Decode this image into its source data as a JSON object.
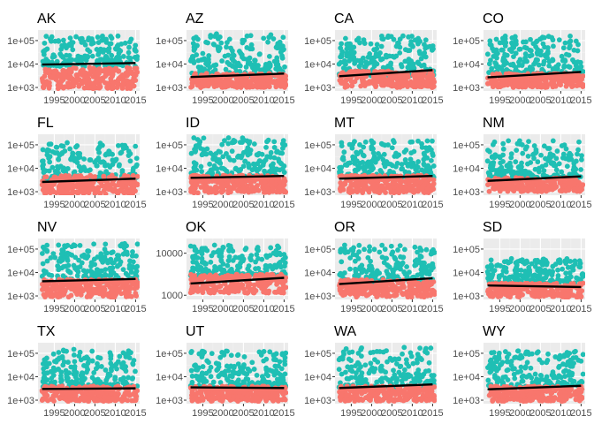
{
  "figure": {
    "colors": {
      "series_low": "#F8766D",
      "series_high": "#1FBFB4",
      "trend": "#000000"
    }
  },
  "chart_data": [
    {
      "type": "scatter",
      "title": "AK",
      "xlim": [
        1991,
        2016
      ],
      "ylim_log10": [
        2.85,
        5.45
      ],
      "y_ticks": [
        {
          "value": 1000,
          "label": "1e+03"
        },
        {
          "value": 10000,
          "label": "1e+04"
        },
        {
          "value": 100000,
          "label": "1e+05"
        }
      ],
      "x_ticks": [
        {
          "value": 1995,
          "label": "1995"
        },
        {
          "value": 2000,
          "label": "2000"
        },
        {
          "value": 2005,
          "label": "2005"
        },
        {
          "value": 2010,
          "label": "2010"
        },
        {
          "value": 2015,
          "label": "2015"
        }
      ],
      "low_range_log10": [
        2.95,
        3.85
      ],
      "high_range_log10": [
        3.9,
        5.2
      ],
      "trend": [
        {
          "x": 1992,
          "y": 9500
        },
        {
          "x": 2015,
          "y": 11000
        }
      ]
    },
    {
      "type": "scatter",
      "title": "AZ",
      "xlim": [
        1991,
        2016
      ],
      "ylim_log10": [
        2.85,
        5.45
      ],
      "y_ticks": [
        {
          "value": 1000,
          "label": "1e+03"
        },
        {
          "value": 10000,
          "label": "1e+04"
        },
        {
          "value": 100000,
          "label": "1e+05"
        }
      ],
      "x_ticks": [
        {
          "value": 1995,
          "label": "1995"
        },
        {
          "value": 2000,
          "label": "2000"
        },
        {
          "value": 2005,
          "label": "2005"
        },
        {
          "value": 2010,
          "label": "2010"
        },
        {
          "value": 2015,
          "label": "2015"
        }
      ],
      "low_range_log10": [
        3.0,
        3.6
      ],
      "high_range_log10": [
        3.5,
        5.3
      ],
      "trend": [
        {
          "x": 1992,
          "y": 2800
        },
        {
          "x": 2015,
          "y": 3900
        }
      ]
    },
    {
      "type": "scatter",
      "title": "CA",
      "xlim": [
        1991,
        2016
      ],
      "ylim_log10": [
        2.85,
        5.45
      ],
      "y_ticks": [
        {
          "value": 1000,
          "label": "1e+03"
        },
        {
          "value": 10000,
          "label": "1e+04"
        },
        {
          "value": 100000,
          "label": "1e+05"
        }
      ],
      "x_ticks": [
        {
          "value": 1995,
          "label": "1995"
        },
        {
          "value": 2000,
          "label": "2000"
        },
        {
          "value": 2005,
          "label": "2005"
        },
        {
          "value": 2010,
          "label": "2010"
        },
        {
          "value": 2015,
          "label": "2015"
        }
      ],
      "low_range_log10": [
        3.0,
        3.7
      ],
      "high_range_log10": [
        3.5,
        5.2
      ],
      "trend": [
        {
          "x": 1992,
          "y": 3000
        },
        {
          "x": 2015,
          "y": 5500
        }
      ]
    },
    {
      "type": "scatter",
      "title": "CO",
      "xlim": [
        1991,
        2016
      ],
      "ylim_log10": [
        2.85,
        5.45
      ],
      "y_ticks": [
        {
          "value": 1000,
          "label": "1e+03"
        },
        {
          "value": 10000,
          "label": "1e+04"
        },
        {
          "value": 100000,
          "label": "1e+05"
        }
      ],
      "x_ticks": [
        {
          "value": 1995,
          "label": "1995"
        },
        {
          "value": 2000,
          "label": "2000"
        },
        {
          "value": 2005,
          "label": "2005"
        },
        {
          "value": 2010,
          "label": "2010"
        },
        {
          "value": 2015,
          "label": "2015"
        }
      ],
      "low_range_log10": [
        3.0,
        3.6
      ],
      "high_range_log10": [
        3.6,
        5.2
      ],
      "trend": [
        {
          "x": 1992,
          "y": 2700
        },
        {
          "x": 2015,
          "y": 4600
        }
      ]
    },
    {
      "type": "scatter",
      "title": "FL",
      "xlim": [
        1991,
        2016
      ],
      "ylim_log10": [
        2.85,
        5.45
      ],
      "y_ticks": [
        {
          "value": 1000,
          "label": "1e+03"
        },
        {
          "value": 10000,
          "label": "1e+04"
        },
        {
          "value": 100000,
          "label": "1e+05"
        }
      ],
      "x_ticks": [
        {
          "value": 1995,
          "label": "1995"
        },
        {
          "value": 2000,
          "label": "2000"
        },
        {
          "value": 2005,
          "label": "2005"
        },
        {
          "value": 2010,
          "label": "2010"
        },
        {
          "value": 2015,
          "label": "2015"
        }
      ],
      "low_range_log10": [
        2.9,
        3.7
      ],
      "high_range_log10": [
        3.5,
        5.1
      ],
      "trend": [
        {
          "x": 1992,
          "y": 2600
        },
        {
          "x": 2015,
          "y": 3600
        }
      ]
    },
    {
      "type": "scatter",
      "title": "ID",
      "xlim": [
        1991,
        2016
      ],
      "ylim_log10": [
        2.85,
        5.45
      ],
      "y_ticks": [
        {
          "value": 1000,
          "label": "1e+03"
        },
        {
          "value": 10000,
          "label": "1e+04"
        },
        {
          "value": 100000,
          "label": "1e+05"
        }
      ],
      "x_ticks": [
        {
          "value": 1995,
          "label": "1995"
        },
        {
          "value": 2000,
          "label": "2000"
        },
        {
          "value": 2005,
          "label": "2005"
        },
        {
          "value": 2010,
          "label": "2010"
        },
        {
          "value": 2015,
          "label": "2015"
        }
      ],
      "low_range_log10": [
        2.95,
        3.7
      ],
      "high_range_log10": [
        3.6,
        5.3
      ],
      "trend": [
        {
          "x": 1992,
          "y": 3900
        },
        {
          "x": 2015,
          "y": 4700
        }
      ]
    },
    {
      "type": "scatter",
      "title": "MT",
      "xlim": [
        1991,
        2016
      ],
      "ylim_log10": [
        2.85,
        5.45
      ],
      "y_ticks": [
        {
          "value": 1000,
          "label": "1e+03"
        },
        {
          "value": 10000,
          "label": "1e+04"
        },
        {
          "value": 100000,
          "label": "1e+05"
        }
      ],
      "x_ticks": [
        {
          "value": 1995,
          "label": "1995"
        },
        {
          "value": 2000,
          "label": "2000"
        },
        {
          "value": 2005,
          "label": "2005"
        },
        {
          "value": 2010,
          "label": "2010"
        },
        {
          "value": 2015,
          "label": "2015"
        }
      ],
      "low_range_log10": [
        2.95,
        3.7
      ],
      "high_range_log10": [
        3.6,
        5.2
      ],
      "trend": [
        {
          "x": 1992,
          "y": 3600
        },
        {
          "x": 2015,
          "y": 4700
        }
      ]
    },
    {
      "type": "scatter",
      "title": "NM",
      "xlim": [
        1991,
        2016
      ],
      "ylim_log10": [
        2.85,
        5.45
      ],
      "y_ticks": [
        {
          "value": 1000,
          "label": "1e+03"
        },
        {
          "value": 10000,
          "label": "1e+04"
        },
        {
          "value": 100000,
          "label": "1e+05"
        }
      ],
      "x_ticks": [
        {
          "value": 1995,
          "label": "1995"
        },
        {
          "value": 2000,
          "label": "2000"
        },
        {
          "value": 2005,
          "label": "2005"
        },
        {
          "value": 2010,
          "label": "2010"
        },
        {
          "value": 2015,
          "label": "2015"
        }
      ],
      "low_range_log10": [
        3.0,
        3.6
      ],
      "high_range_log10": [
        3.6,
        5.2
      ],
      "trend": [
        {
          "x": 1992,
          "y": 2900
        },
        {
          "x": 2015,
          "y": 4500
        }
      ]
    },
    {
      "type": "scatter",
      "title": "NV",
      "xlim": [
        1991,
        2016
      ],
      "ylim_log10": [
        2.85,
        5.45
      ],
      "y_ticks": [
        {
          "value": 1000,
          "label": "1e+03"
        },
        {
          "value": 10000,
          "label": "1e+04"
        },
        {
          "value": 100000,
          "label": "1e+05"
        }
      ],
      "x_ticks": [
        {
          "value": 1995,
          "label": "1995"
        },
        {
          "value": 2000,
          "label": "2000"
        },
        {
          "value": 2005,
          "label": "2005"
        },
        {
          "value": 2010,
          "label": "2010"
        },
        {
          "value": 2015,
          "label": "2015"
        }
      ],
      "low_range_log10": [
        2.95,
        3.7
      ],
      "high_range_log10": [
        3.6,
        5.25
      ],
      "trend": [
        {
          "x": 1992,
          "y": 4200
        },
        {
          "x": 2015,
          "y": 5300
        }
      ]
    },
    {
      "type": "scatter",
      "title": "OK",
      "xlim": [
        1991,
        2016
      ],
      "ylim_log10": [
        2.9,
        4.35
      ],
      "y_ticks": [
        {
          "value": 1000,
          "label": "1000"
        },
        {
          "value": 10000,
          "label": "10000"
        }
      ],
      "x_ticks": [
        {
          "value": 1995,
          "label": "1995"
        },
        {
          "value": 2000,
          "label": "2000"
        },
        {
          "value": 2005,
          "label": "2005"
        },
        {
          "value": 2010,
          "label": "2010"
        },
        {
          "value": 2015,
          "label": "2015"
        }
      ],
      "low_range_log10": [
        3.05,
        3.5
      ],
      "high_range_log10": [
        3.45,
        4.2
      ],
      "trend": [
        {
          "x": 1992,
          "y": 1900
        },
        {
          "x": 2015,
          "y": 2600
        }
      ]
    },
    {
      "type": "scatter",
      "title": "OR",
      "xlim": [
        1991,
        2016
      ],
      "ylim_log10": [
        2.85,
        5.45
      ],
      "y_ticks": [
        {
          "value": 1000,
          "label": "1e+03"
        },
        {
          "value": 10000,
          "label": "1e+04"
        },
        {
          "value": 100000,
          "label": "1e+05"
        }
      ],
      "x_ticks": [
        {
          "value": 1995,
          "label": "1995"
        },
        {
          "value": 2000,
          "label": "2000"
        },
        {
          "value": 2005,
          "label": "2005"
        },
        {
          "value": 2010,
          "label": "2010"
        },
        {
          "value": 2015,
          "label": "2015"
        }
      ],
      "low_range_log10": [
        2.95,
        3.7
      ],
      "high_range_log10": [
        3.6,
        5.2
      ],
      "trend": [
        {
          "x": 1992,
          "y": 3200
        },
        {
          "x": 2015,
          "y": 5700
        }
      ]
    },
    {
      "type": "scatter",
      "title": "SD",
      "xlim": [
        1991,
        2016
      ],
      "ylim_log10": [
        2.85,
        5.45
      ],
      "y_ticks": [
        {
          "value": 1000,
          "label": "1e+03"
        },
        {
          "value": 10000,
          "label": "1e+04"
        },
        {
          "value": 100000,
          "label": "1e+05"
        }
      ],
      "x_ticks": [
        {
          "value": 1995,
          "label": "1995"
        },
        {
          "value": 2000,
          "label": "2000"
        },
        {
          "value": 2005,
          "label": "2005"
        },
        {
          "value": 2010,
          "label": "2010"
        },
        {
          "value": 2015,
          "label": "2015"
        }
      ],
      "low_range_log10": [
        2.95,
        3.55
      ],
      "high_range_log10": [
        3.55,
        4.6
      ],
      "trend": [
        {
          "x": 1992,
          "y": 2800
        },
        {
          "x": 2015,
          "y": 2400
        }
      ]
    },
    {
      "type": "scatter",
      "title": "TX",
      "xlim": [
        1991,
        2016
      ],
      "ylim_log10": [
        2.85,
        5.45
      ],
      "y_ticks": [
        {
          "value": 1000,
          "label": "1e+03"
        },
        {
          "value": 10000,
          "label": "1e+04"
        },
        {
          "value": 100000,
          "label": "1e+05"
        }
      ],
      "x_ticks": [
        {
          "value": 1995,
          "label": "1995"
        },
        {
          "value": 2000,
          "label": "2000"
        },
        {
          "value": 2005,
          "label": "2005"
        },
        {
          "value": 2010,
          "label": "2010"
        },
        {
          "value": 2015,
          "label": "2015"
        }
      ],
      "low_range_log10": [
        2.95,
        3.6
      ],
      "high_range_log10": [
        3.55,
        5.2
      ],
      "trend": [
        {
          "x": 1992,
          "y": 3000
        },
        {
          "x": 2015,
          "y": 3200
        }
      ]
    },
    {
      "type": "scatter",
      "title": "UT",
      "xlim": [
        1991,
        2016
      ],
      "ylim_log10": [
        2.85,
        5.45
      ],
      "y_ticks": [
        {
          "value": 1000,
          "label": "1e+03"
        },
        {
          "value": 10000,
          "label": "1e+04"
        },
        {
          "value": 100000,
          "label": "1e+05"
        }
      ],
      "x_ticks": [
        {
          "value": 1995,
          "label": "1995"
        },
        {
          "value": 2000,
          "label": "2000"
        },
        {
          "value": 2005,
          "label": "2005"
        },
        {
          "value": 2010,
          "label": "2010"
        },
        {
          "value": 2015,
          "label": "2015"
        }
      ],
      "low_range_log10": [
        2.95,
        3.6
      ],
      "high_range_log10": [
        3.55,
        5.1
      ],
      "trend": [
        {
          "x": 1992,
          "y": 3500
        },
        {
          "x": 2015,
          "y": 3300
        }
      ]
    },
    {
      "type": "scatter",
      "title": "WA",
      "xlim": [
        1991,
        2016
      ],
      "ylim_log10": [
        2.85,
        5.45
      ],
      "y_ticks": [
        {
          "value": 1000,
          "label": "1e+03"
        },
        {
          "value": 10000,
          "label": "1e+04"
        },
        {
          "value": 100000,
          "label": "1e+05"
        }
      ],
      "x_ticks": [
        {
          "value": 1995,
          "label": "1995"
        },
        {
          "value": 2000,
          "label": "2000"
        },
        {
          "value": 2005,
          "label": "2005"
        },
        {
          "value": 2010,
          "label": "2010"
        },
        {
          "value": 2015,
          "label": "2015"
        }
      ],
      "low_range_log10": [
        2.95,
        3.6
      ],
      "high_range_log10": [
        3.55,
        5.25
      ],
      "trend": [
        {
          "x": 1992,
          "y": 3300
        },
        {
          "x": 2015,
          "y": 4700
        }
      ]
    },
    {
      "type": "scatter",
      "title": "WY",
      "xlim": [
        1991,
        2016
      ],
      "ylim_log10": [
        2.85,
        5.45
      ],
      "y_ticks": [
        {
          "value": 1000,
          "label": "1e+03"
        },
        {
          "value": 10000,
          "label": "1e+04"
        },
        {
          "value": 100000,
          "label": "1e+05"
        }
      ],
      "x_ticks": [
        {
          "value": 1995,
          "label": "1995"
        },
        {
          "value": 2000,
          "label": "2000"
        },
        {
          "value": 2005,
          "label": "2005"
        },
        {
          "value": 2010,
          "label": "2010"
        },
        {
          "value": 2015,
          "label": "2015"
        }
      ],
      "low_range_log10": [
        2.95,
        3.6
      ],
      "high_range_log10": [
        3.55,
        5.1
      ],
      "trend": [
        {
          "x": 1992,
          "y": 2900
        },
        {
          "x": 2015,
          "y": 4100
        }
      ]
    }
  ]
}
